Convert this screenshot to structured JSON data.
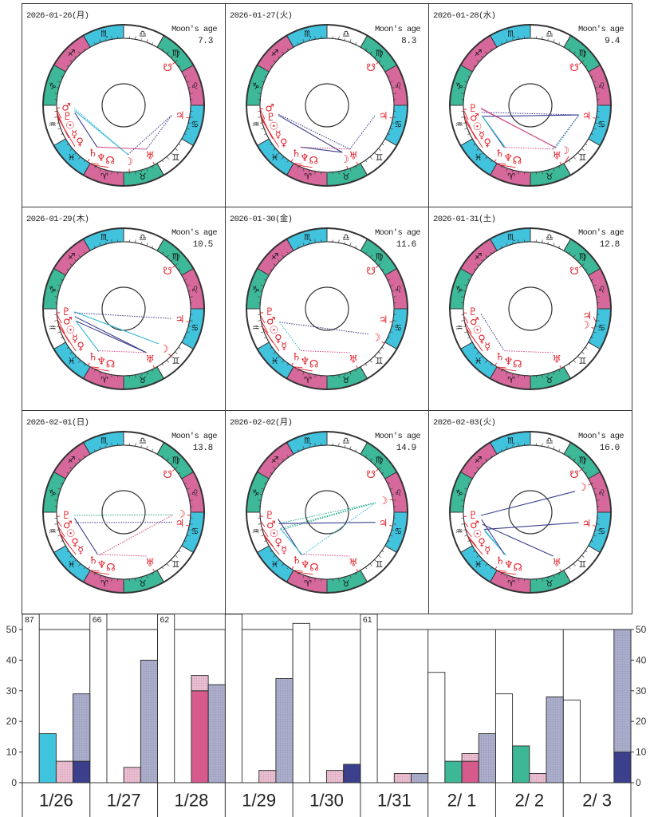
{
  "zodiac": [
    {
      "name": "Aries",
      "glyph": "♈",
      "element": "fire"
    },
    {
      "name": "Taurus",
      "glyph": "♉",
      "element": "earth"
    },
    {
      "name": "Gemini",
      "glyph": "♊",
      "element": "air"
    },
    {
      "name": "Cancer",
      "glyph": "♋",
      "element": "water"
    },
    {
      "name": "Leo",
      "glyph": "♌",
      "element": "fire"
    },
    {
      "name": "Virgo",
      "glyph": "♍",
      "element": "earth"
    },
    {
      "name": "Libra",
      "glyph": "♎",
      "element": "air"
    },
    {
      "name": "Scorpio",
      "glyph": "♏",
      "element": "water"
    },
    {
      "name": "Sagittarius",
      "glyph": "♐",
      "element": "fire"
    },
    {
      "name": "Capricorn",
      "glyph": "♑",
      "element": "earth"
    },
    {
      "name": "Aquarius",
      "glyph": "♒",
      "element": "air"
    },
    {
      "name": "Pisces",
      "glyph": "♓",
      "element": "water"
    }
  ],
  "element_colors": {
    "fire": "#d6689b",
    "earth": "#3db898",
    "air": "#ffffff",
    "water": "#41c3de"
  },
  "planet_color": "#e2222c",
  "planet_glyphs": {
    "Sun": "☉",
    "Moon": "☽",
    "Mercury": "☿",
    "Venus": "♀",
    "Mars": "♂",
    "Jupiter": "♃",
    "Saturn": "♄",
    "Uranus": "♅",
    "Neptune": "♆",
    "Pluto": "♇",
    "NorthNode": "☊",
    "SouthNode": "☋"
  },
  "aspect_styles": {
    "cyan-solid": {
      "color": "#37bcd6",
      "line": "solid"
    },
    "cyan-dotted": {
      "color": "#37bcd6",
      "line": "dotted"
    },
    "teal-dotted": {
      "color": "#2fae8e",
      "line": "dotted"
    },
    "navy-solid": {
      "color": "#3d3f8e",
      "line": "solid"
    },
    "navy-dotted": {
      "color": "#3d3f8e",
      "line": "dotted"
    },
    "pink-solid": {
      "color": "#d2508a",
      "line": "solid"
    },
    "pink-dotted": {
      "color": "#d2508a",
      "line": "dotted"
    }
  },
  "chart_data": [
    {
      "type": "radial",
      "title": "2026-01-26(月)",
      "moon_age_label": "Moon's age",
      "moon_age": "7.3",
      "positions": {
        "Mars": 302.3,
        "Pluto": 303.4,
        "Sun": 306.1,
        "Mercury": 308.5,
        "Venus": 310.4,
        "Saturn": 357.5,
        "Neptune": 0.0,
        "NorthNode": 3.0,
        "Moon": 35,
        "Uranus": 57.5,
        "Jupiter": 109.0,
        "SouthNode": 160.0
      },
      "aspects": [
        {
          "from": "Sun",
          "to": "Moon",
          "style": "cyan-solid"
        },
        {
          "from": "Pluto",
          "to": "Moon",
          "style": "cyan-dotted"
        },
        {
          "from": "Mercury",
          "to": "Saturn",
          "style": "navy-solid"
        },
        {
          "from": "Saturn",
          "to": "Uranus",
          "style": "pink-solid"
        },
        {
          "from": "Moon",
          "to": "Jupiter",
          "style": "navy-dotted"
        },
        {
          "from": "Uranus",
          "to": "Jupiter",
          "style": "navy-dotted"
        }
      ]
    },
    {
      "type": "radial",
      "title": "2026-01-27(火)",
      "moon_age_label": "Moon's age",
      "moon_age": "8.3",
      "positions": {
        "Mars": 303.1,
        "Pluto": 303.4,
        "Sun": 307.1,
        "Mercury": 310.3,
        "Venus": 311.7,
        "Saturn": 357.6,
        "Neptune": 0.0,
        "NorthNode": 3.0,
        "Moon": 48,
        "Uranus": 57.5,
        "Jupiter": 108.9,
        "SouthNode": 160.0
      },
      "aspects": [
        {
          "from": "Venus",
          "to": "Moon",
          "style": "navy-solid"
        },
        {
          "from": "Saturn",
          "to": "Moon",
          "style": "navy-solid"
        },
        {
          "from": "Mercury",
          "to": "Uranus",
          "style": "navy-dotted"
        },
        {
          "from": "Saturn",
          "to": "Uranus",
          "style": "pink-dotted"
        },
        {
          "from": "Uranus",
          "to": "Jupiter",
          "style": "navy-dotted"
        }
      ]
    },
    {
      "type": "radial",
      "title": "2026-01-28(水)",
      "moon_age_label": "Moon's age",
      "moon_age": "9.4",
      "positions": {
        "Pluto": 303.5,
        "Mars": 303.9,
        "Sun": 308.1,
        "Mercury": 312.1,
        "Venus": 312.9,
        "Saturn": 357.7,
        "Neptune": 0.1,
        "NorthNode": 3.0,
        "Moon": 61,
        "Uranus": 57.5,
        "Jupiter": 108.8,
        "SouthNode": 160.0
      },
      "aspects": [
        {
          "from": "Pluto",
          "to": "Moon",
          "style": "pink-solid"
        },
        {
          "from": "Mars",
          "to": "Moon",
          "style": "pink-solid"
        },
        {
          "from": "Sun",
          "to": "Jupiter",
          "style": "navy-dotted"
        },
        {
          "from": "Venus",
          "to": "Jupiter",
          "style": "navy-solid"
        },
        {
          "from": "Mercury",
          "to": "Saturn",
          "style": "navy-solid"
        },
        {
          "from": "Mercury",
          "to": "Neptune",
          "style": "cyan-solid"
        },
        {
          "from": "Saturn",
          "to": "Uranus",
          "style": "pink-dotted"
        },
        {
          "from": "Moon",
          "to": "Jupiter",
          "style": "cyan-dotted"
        },
        {
          "from": "Uranus",
          "to": "Jupiter",
          "style": "navy-dotted"
        }
      ]
    },
    {
      "type": "radial",
      "title": "2026-01-29(木)",
      "moon_age_label": "Moon's age",
      "moon_age": "10.5",
      "positions": {
        "Pluto": 303.5,
        "Mars": 304.6,
        "Sun": 309.1,
        "Mercury": 313.9,
        "Venus": 314.2,
        "Saturn": 357.8,
        "Neptune": 0.1,
        "NorthNode": 3.0,
        "Moon": 75,
        "Uranus": 57.5,
        "Jupiter": 108.6,
        "SouthNode": 160.0
      },
      "aspects": [
        {
          "from": "Pluto",
          "to": "Moon",
          "style": "cyan-solid"
        },
        {
          "from": "Mars",
          "to": "Jupiter",
          "style": "navy-dotted"
        },
        {
          "from": "Sun",
          "to": "Uranus",
          "style": "navy-solid"
        },
        {
          "from": "Venus",
          "to": "Uranus",
          "style": "navy-solid"
        },
        {
          "from": "Mercury",
          "to": "Neptune",
          "style": "cyan-solid"
        },
        {
          "from": "Saturn",
          "to": "Uranus",
          "style": "pink-dotted"
        }
      ]
    },
    {
      "type": "radial",
      "title": "2026-01-30(金)",
      "moon_age_label": "Moon's age",
      "moon_age": "11.6",
      "positions": {
        "Pluto": 303.5,
        "Mars": 305.4,
        "Sun": 310.1,
        "Venus": 315.4,
        "Mercury": 315.7,
        "Saturn": 357.9,
        "Neptune": 0.1,
        "NorthNode": 3.0,
        "Moon": 89,
        "Uranus": 57.4,
        "Jupiter": 108.5,
        "SouthNode": 160.0
      },
      "aspects": [
        {
          "from": "Mercury",
          "to": "Moon",
          "style": "navy-dotted"
        },
        {
          "from": "Venus",
          "to": "Saturn",
          "style": "cyan-dotted"
        },
        {
          "from": "Saturn",
          "to": "Uranus",
          "style": "pink-dotted"
        }
      ]
    },
    {
      "type": "radial",
      "title": "2026-01-31(土)",
      "moon_age_label": "Moon's age",
      "moon_age": "12.8",
      "positions": {
        "Pluto": 303.6,
        "Mars": 306.2,
        "Sun": 311.2,
        "Venus": 316.7,
        "Mercury": 317.5,
        "Saturn": 358.0,
        "Neptune": 0.2,
        "NorthNode": 3.0,
        "Moon": 103,
        "Uranus": 57.4,
        "Jupiter": 108.4,
        "SouthNode": 160.0
      },
      "aspects": [
        {
          "from": "Mars",
          "to": "Saturn",
          "style": "navy-dotted"
        },
        {
          "from": "Saturn",
          "to": "Uranus",
          "style": "pink-dotted"
        }
      ]
    },
    {
      "type": "radial",
      "title": "2026-02-01(日)",
      "moon_age_label": "Moon's age",
      "moon_age": "13.8",
      "positions": {
        "Pluto": 303.6,
        "Mars": 307.0,
        "Sun": 312.2,
        "Venus": 317.9,
        "Mercury": 319.3,
        "Saturn": 358.1,
        "Neptune": 0.2,
        "NorthNode": 3.0,
        "Moon": 117,
        "Uranus": 57.4,
        "Jupiter": 108.3,
        "SouthNode": 160.0
      },
      "aspects": [
        {
          "from": "Pluto",
          "to": "Moon",
          "style": "teal-dotted"
        },
        {
          "from": "Sun",
          "to": "Jupiter",
          "style": "navy-dotted"
        },
        {
          "from": "Mars",
          "to": "Saturn",
          "style": "navy-solid"
        },
        {
          "from": "Saturn",
          "to": "Uranus",
          "style": "pink-dotted"
        },
        {
          "from": "Neptune",
          "to": "Moon",
          "style": "pink-dotted"
        }
      ]
    },
    {
      "type": "radial",
      "title": "2026-02-02(月)",
      "moon_age_label": "Moon's age",
      "moon_age": "14.9",
      "positions": {
        "Pluto": 303.6,
        "Mars": 307.8,
        "Sun": 313.2,
        "Venus": 319.2,
        "Mercury": 321.1,
        "Saturn": 358.2,
        "Neptune": 0.2,
        "NorthNode": 3.0,
        "Moon": 131,
        "Uranus": 57.4,
        "Jupiter": 108.2,
        "SouthNode": 160.0
      },
      "aspects": [
        {
          "from": "Sun",
          "to": "Moon",
          "style": "teal-dotted"
        },
        {
          "from": "Mercury",
          "to": "Moon",
          "style": "teal-dotted"
        },
        {
          "from": "Venus",
          "to": "Moon",
          "style": "teal-dotted"
        },
        {
          "from": "Sun",
          "to": "Jupiter",
          "style": "navy-solid"
        },
        {
          "from": "Mars",
          "to": "Saturn",
          "style": "navy-solid"
        },
        {
          "from": "Venus",
          "to": "Neptune",
          "style": "cyan-solid"
        },
        {
          "from": "Neptune",
          "to": "Moon",
          "style": "cyan-dotted"
        },
        {
          "from": "Saturn",
          "to": "Uranus",
          "style": "pink-dotted"
        }
      ]
    },
    {
      "type": "radial",
      "title": "2026-02-03(火)",
      "moon_age_label": "Moon's age",
      "moon_age": "16.0",
      "positions": {
        "Pluto": 303.7,
        "Mars": 308.5,
        "Sun": 314.2,
        "Venus": 320.4,
        "Mercury": 322.9,
        "Saturn": 358.3,
        "Neptune": 0.2,
        "NorthNode": 3.0,
        "Moon": 145,
        "Uranus": 57.4,
        "Jupiter": 108.0,
        "SouthNode": 160.0
      },
      "aspects": [
        {
          "from": "Pluto",
          "to": "Moon",
          "style": "navy-solid"
        },
        {
          "from": "Venus",
          "to": "Jupiter",
          "style": "navy-solid"
        },
        {
          "from": "Sun",
          "to": "Uranus",
          "style": "navy-solid"
        },
        {
          "from": "Mercury",
          "to": "Neptune",
          "style": "cyan-solid"
        },
        {
          "from": "Venus",
          "to": "Neptune",
          "style": "cyan-solid"
        },
        {
          "from": "Mars",
          "to": "Saturn",
          "style": "navy-solid"
        }
      ]
    },
    {
      "type": "bar",
      "title": "",
      "xlabel": "",
      "ylabel": "",
      "categories": [
        "1/26",
        "1/27",
        "1/28",
        "1/29",
        "1/30",
        "1/31",
        "2/ 1",
        "2/ 2",
        "2/ 3"
      ],
      "ylim": [
        0,
        55
      ],
      "display_max": 55,
      "yticks": [
        0,
        10,
        20,
        30,
        40,
        50
      ],
      "y_axes": [
        "left",
        "right"
      ],
      "grid": false,
      "legend": "none",
      "series": [
        {
          "name": "white",
          "color": "#ffffff",
          "slot": 0,
          "values": [
            87,
            66,
            62,
            55,
            52,
            61,
            36,
            29,
            27
          ]
        },
        {
          "name": "cyan",
          "color": "#3ec4dc",
          "slot": 1,
          "values": [
            16,
            0,
            0,
            0,
            0,
            0,
            0,
            0,
            0
          ]
        },
        {
          "name": "teal",
          "color": "#3cb897",
          "slot": 1,
          "values": [
            0,
            0,
            0,
            0,
            0,
            0,
            7,
            12,
            0
          ]
        },
        {
          "name": "magenta",
          "color": "#d65b8c",
          "slot": 2,
          "values": [
            0,
            0,
            30,
            0,
            0,
            0,
            7,
            0,
            0
          ]
        },
        {
          "name": "light-pink",
          "color": "#ecc3d4",
          "pattern": "hatched",
          "slot": 2,
          "stacked_on": "magenta",
          "values": [
            7,
            5,
            5,
            4,
            4,
            3,
            2.5,
            3,
            0
          ]
        },
        {
          "name": "navy",
          "color": "#3b3f8c",
          "slot": 3,
          "values": [
            7,
            0,
            0,
            0,
            6,
            0,
            0,
            0,
            10
          ]
        },
        {
          "name": "gray-blue",
          "color": "#aeb1cd",
          "pattern": "hatched",
          "slot": 3,
          "stacked_on": "navy",
          "values": [
            22,
            40,
            32,
            34,
            0,
            3,
            16,
            28,
            40
          ]
        }
      ]
    }
  ]
}
